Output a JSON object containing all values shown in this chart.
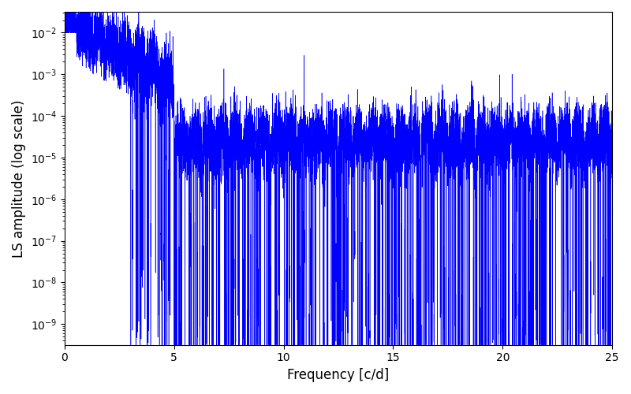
{
  "line_color": "#0000ff",
  "xlabel": "Frequency [c/d]",
  "ylabel": "LS amplitude (log scale)",
  "xlim": [
    0,
    25
  ],
  "ylim_log": [
    -9.5,
    -1.5
  ],
  "background_color": "#ffffff",
  "figsize": [
    8.0,
    5.0
  ],
  "dpi": 100,
  "seed": 12345,
  "n_points": 12000,
  "freq_max": 25.0
}
